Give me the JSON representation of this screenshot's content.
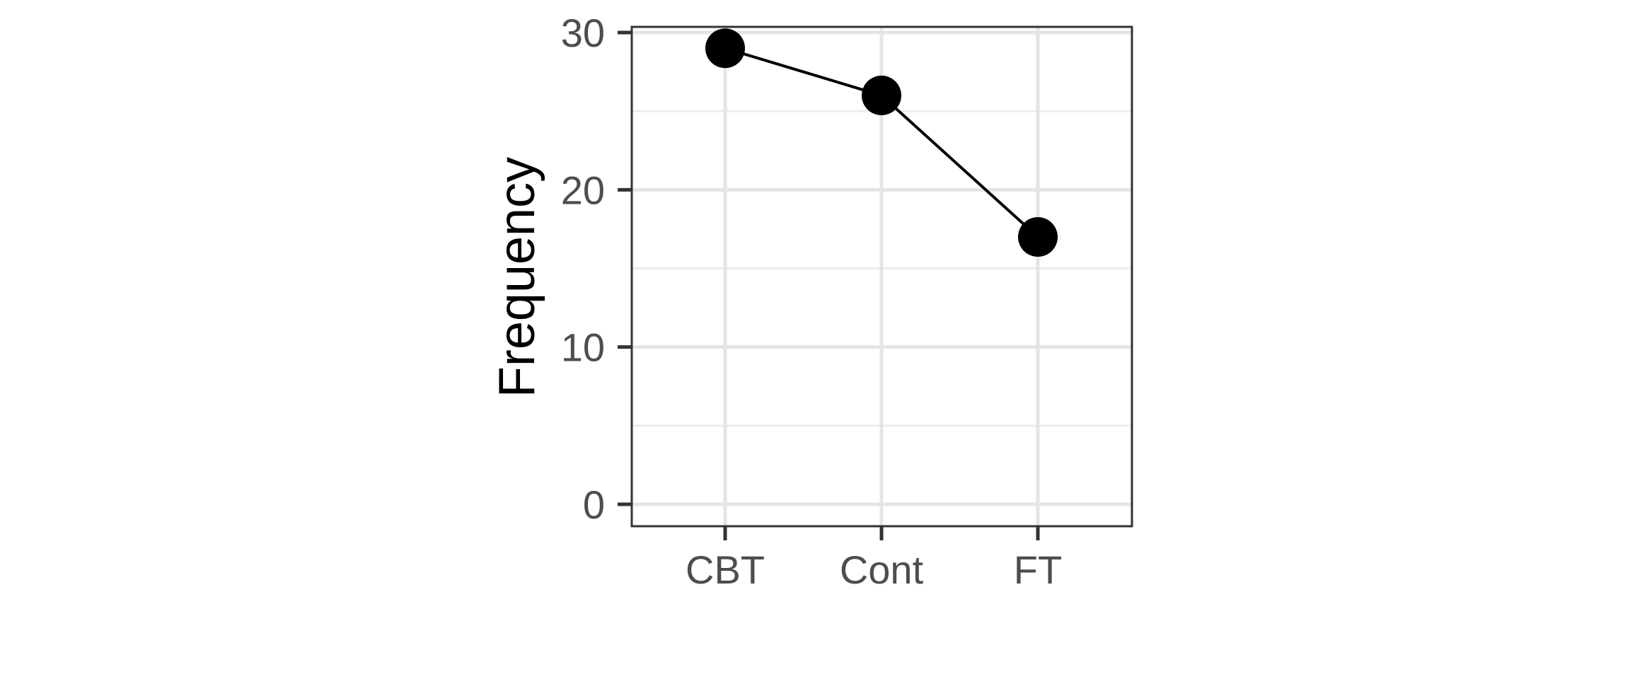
{
  "chart_data": {
    "type": "line",
    "categories": [
      "CBT",
      "Cont",
      "FT"
    ],
    "values": [
      29,
      26,
      17
    ],
    "xlabel": "",
    "ylabel": "Frequency",
    "ylim": [
      0,
      30
    ],
    "yticks": [
      0,
      10,
      20,
      30
    ],
    "grid": true,
    "legend": "none",
    "colors": {
      "series": "#000000",
      "grid": "#e5e5e5",
      "tick_text": "#4d4d4d"
    }
  }
}
